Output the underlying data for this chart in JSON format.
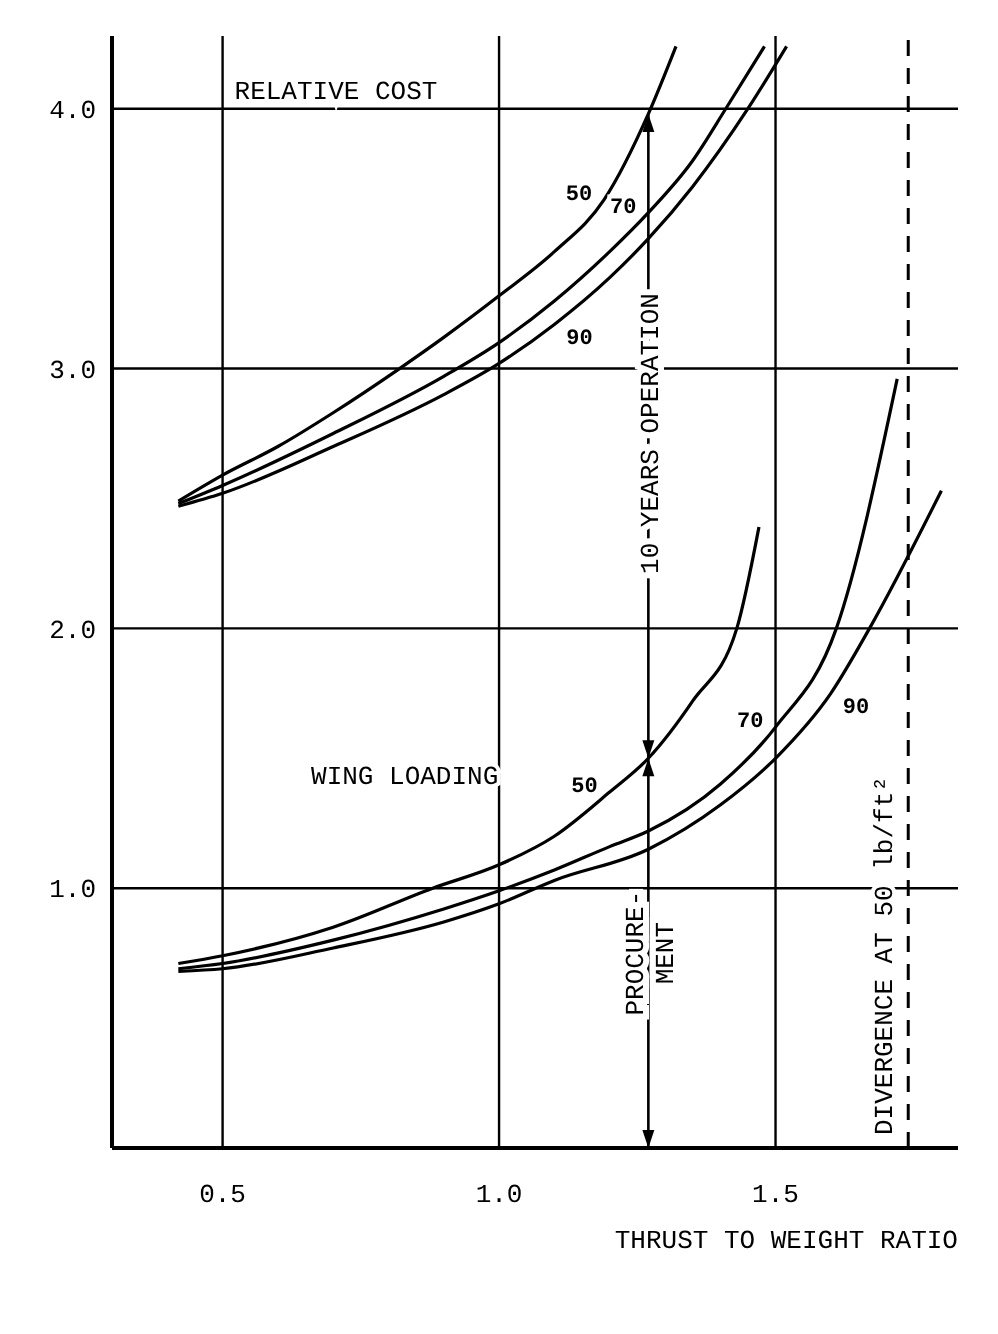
{
  "chart_data": {
    "type": "line",
    "ylabel": "RELATIVE COST",
    "xlabel": "THRUST TO WEIGHT RATIO",
    "legend_title": "WING LOADING",
    "xlim": [
      0.3,
      1.83
    ],
    "ylim": [
      0,
      4.28
    ],
    "xticks": [
      0.5,
      {
        "value": 1,
        "label": "1.0"
      },
      1.5
    ],
    "yticks": [
      {
        "value": 1,
        "label": "1.0"
      },
      {
        "value": 2,
        "label": "2.0"
      },
      {
        "value": 3,
        "label": "3.0"
      },
      {
        "value": 4,
        "label": "4.0"
      }
    ],
    "grid": true,
    "line_style": "solid",
    "marker": "none",
    "series": [
      {
        "name": "50",
        "color": "#000000",
        "x": [
          0.42,
          0.5,
          0.6,
          0.7,
          0.82,
          0.9,
          1.0,
          1.1,
          1.19,
          1.27,
          1.32
        ],
        "values": [
          2.49,
          2.59,
          2.7,
          2.83,
          3.0,
          3.12,
          3.28,
          3.45,
          3.65,
          3.98,
          4.24
        ]
      },
      {
        "name": "70",
        "color": "#000000",
        "x": [
          0.42,
          0.5,
          0.7,
          0.9,
          1.0,
          1.1,
          1.2,
          1.27,
          1.35,
          1.41,
          1.48
        ],
        "values": [
          2.48,
          2.55,
          2.75,
          2.97,
          3.1,
          3.26,
          3.45,
          3.6,
          3.8,
          4.0,
          4.24
        ]
      },
      {
        "name": "90",
        "color": "#000000",
        "x": [
          0.42,
          0.5,
          0.7,
          0.9,
          1.0,
          1.1,
          1.2,
          1.27,
          1.35,
          1.45,
          1.52
        ],
        "values": [
          2.47,
          2.52,
          2.7,
          2.9,
          3.02,
          3.17,
          3.35,
          3.5,
          3.7,
          4.0,
          4.24
        ]
      },
      {
        "name": "50",
        "color": "#000000",
        "x": [
          0.42,
          0.5,
          0.7,
          0.88,
          1.0,
          1.1,
          1.2,
          1.27,
          1.35,
          1.43,
          1.47
        ],
        "values": [
          0.71,
          0.74,
          0.85,
          1.0,
          1.09,
          1.2,
          1.37,
          1.5,
          1.72,
          2.0,
          2.39
        ]
      },
      {
        "name": "70",
        "color": "#000000",
        "x": [
          0.42,
          0.5,
          0.7,
          0.9,
          1.0,
          1.1,
          1.2,
          1.27,
          1.4,
          1.5,
          1.61,
          1.72
        ],
        "values": [
          0.69,
          0.71,
          0.8,
          0.92,
          0.99,
          1.07,
          1.16,
          1.22,
          1.4,
          1.62,
          2.0,
          2.96
        ]
      },
      {
        "name": "90",
        "color": "#000000",
        "x": [
          0.42,
          0.5,
          0.7,
          0.9,
          1.0,
          1.1,
          1.27,
          1.4,
          1.5,
          1.6,
          1.67,
          1.8
        ],
        "values": [
          0.68,
          0.69,
          0.77,
          0.87,
          0.94,
          1.03,
          1.15,
          1.32,
          1.5,
          1.75,
          2.0,
          2.53
        ]
      }
    ],
    "ref_lines": [
      {
        "axis": "x",
        "value": 1.74,
        "label": "DIVERGENCE AT 50 lb/ft²",
        "line_style": "dashed",
        "color": "#000000"
      }
    ],
    "annotations": [
      "10 YEARS OPERATION",
      "PROCURE-\nMENT"
    ]
  }
}
